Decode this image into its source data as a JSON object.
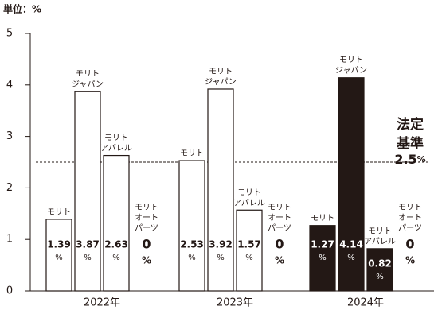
{
  "chart_data": {
    "type": "bar",
    "unit_label": "単位：%",
    "value_unit": "%",
    "categories": [
      "2022年",
      "2023年",
      "2024年"
    ],
    "series": [
      {
        "name": [
          "モリト"
        ],
        "colors": [
          "#ffffff",
          "#ffffff",
          "#231815"
        ],
        "values": [
          1.39,
          2.53,
          1.27
        ]
      },
      {
        "name": [
          "モリト",
          "ジャパン"
        ],
        "colors": [
          "#ffffff",
          "#ffffff",
          "#231815"
        ],
        "values": [
          3.87,
          3.92,
          4.14
        ]
      },
      {
        "name": [
          "モリト",
          "アパレル"
        ],
        "colors": [
          "#ffffff",
          "#ffffff",
          "#231815"
        ],
        "values": [
          2.63,
          1.57,
          0.82
        ]
      },
      {
        "name": [
          "モリト",
          "オート",
          "パーツ"
        ],
        "colors": [
          "#ffffff",
          "#ffffff",
          "#231815"
        ],
        "values": [
          0,
          0,
          0
        ]
      }
    ],
    "reference": {
      "label": [
        "法定",
        "基準"
      ],
      "value": 2.5
    },
    "ylim": [
      0,
      5
    ],
    "yticks": [
      0,
      1,
      2,
      3,
      4,
      5
    ]
  }
}
